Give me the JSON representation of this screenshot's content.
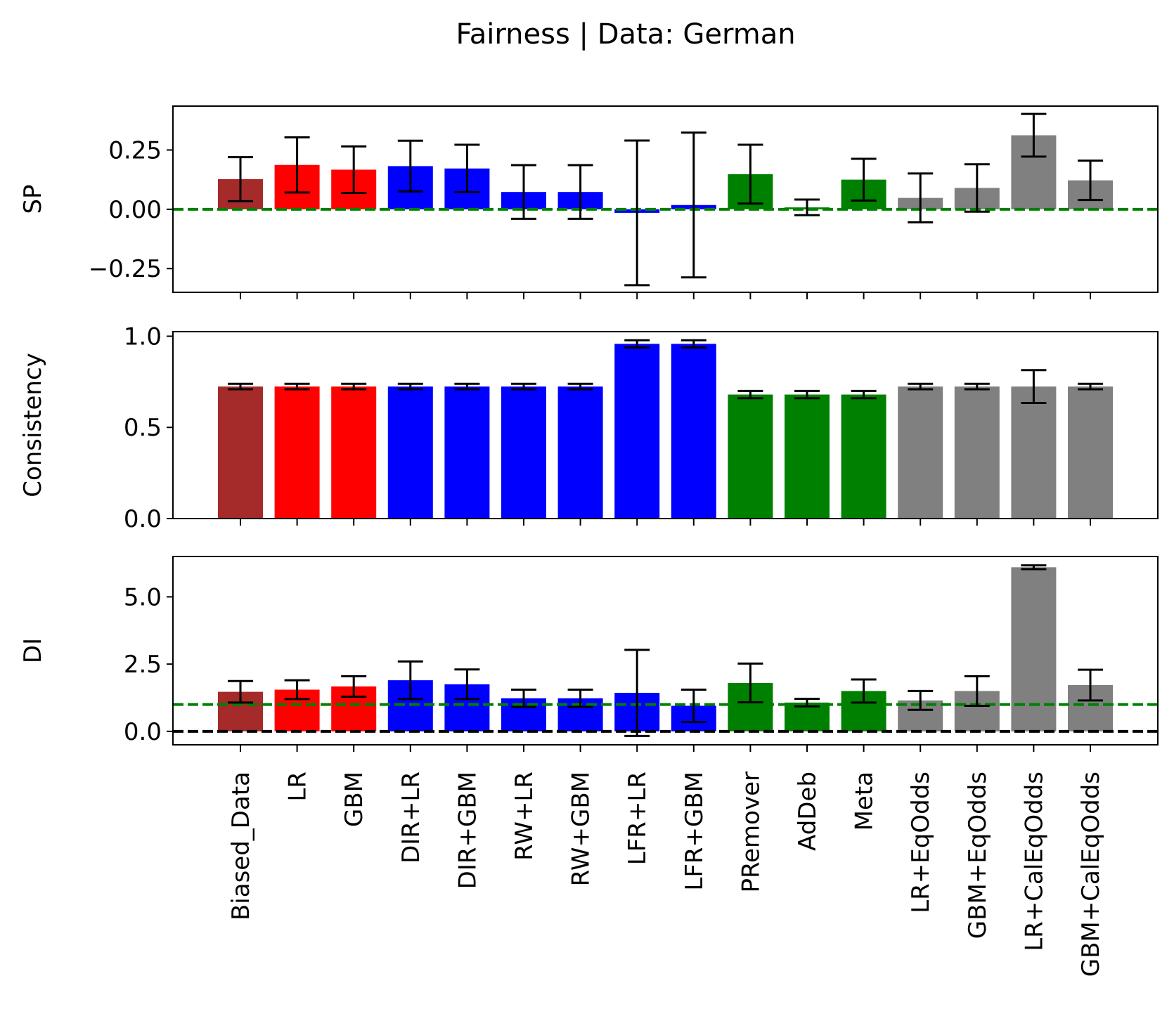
{
  "chart_data": {
    "title": "Fairness  | Data: German",
    "type": "bar",
    "categories": [
      "Biased_Data",
      "LR",
      "GBM",
      "DIR+LR",
      "DIR+GBM",
      "RW+LR",
      "RW+GBM",
      "LFR+LR",
      "LFR+GBM",
      "PRemover",
      "AdDeb",
      "Meta",
      "LR+EqOdds",
      "GBM+EqOdds",
      "LR+CalEqOdds",
      "GBM+CalEqOdds"
    ],
    "bar_colors": [
      "#a52a2a",
      "#ff0000",
      "#ff0000",
      "#0000ff",
      "#0000ff",
      "#0000ff",
      "#0000ff",
      "#0000ff",
      "#0000ff",
      "#008000",
      "#008000",
      "#008000",
      "#808080",
      "#808080",
      "#808080",
      "#808080"
    ],
    "error_bar_color": "#000000",
    "panels": [
      {
        "ylabel": "SP",
        "ylim": [
          -0.35,
          0.435
        ],
        "yticks": [
          -0.25,
          0.0,
          0.25
        ],
        "ytick_labels": [
          "−0.25",
          "0.00",
          "0.25"
        ],
        "values": [
          0.127,
          0.187,
          0.167,
          0.182,
          0.172,
          0.073,
          0.073,
          -0.015,
          0.018,
          0.148,
          0.008,
          0.125,
          0.048,
          0.09,
          0.312,
          0.122
        ],
        "errors": [
          0.093,
          0.116,
          0.098,
          0.107,
          0.1,
          0.113,
          0.113,
          0.305,
          0.305,
          0.124,
          0.033,
          0.088,
          0.103,
          0.1,
          0.09,
          0.083
        ],
        "reference_lines": [
          {
            "y": 0.0,
            "color": "#008000",
            "style": "dashed"
          }
        ],
        "show_xticklabels": false
      },
      {
        "ylabel": "Consistency",
        "ylim": [
          0.0,
          1.025
        ],
        "yticks": [
          0.0,
          0.5,
          1.0
        ],
        "ytick_labels": [
          "0.0",
          "0.5",
          "1.0"
        ],
        "values": [
          0.724,
          0.724,
          0.724,
          0.724,
          0.724,
          0.724,
          0.724,
          0.958,
          0.958,
          0.68,
          0.68,
          0.68,
          0.724,
          0.724,
          0.724,
          0.724
        ],
        "errors": [
          0.015,
          0.015,
          0.015,
          0.015,
          0.015,
          0.015,
          0.015,
          0.02,
          0.02,
          0.02,
          0.02,
          0.02,
          0.015,
          0.015,
          0.09,
          0.015
        ],
        "reference_lines": [],
        "show_xticklabels": false
      },
      {
        "ylabel": "DI",
        "ylim": [
          -0.5,
          6.5
        ],
        "yticks": [
          0.0,
          2.5,
          5.0
        ],
        "ytick_labels": [
          "0.0",
          "2.5",
          "5.0"
        ],
        "values": [
          1.47,
          1.55,
          1.67,
          1.9,
          1.75,
          1.23,
          1.23,
          1.43,
          0.95,
          1.8,
          1.07,
          1.5,
          1.15,
          1.5,
          6.1,
          1.72
        ],
        "errors": [
          0.4,
          0.35,
          0.38,
          0.7,
          0.55,
          0.32,
          0.32,
          1.6,
          0.6,
          0.72,
          0.14,
          0.43,
          0.35,
          0.55,
          0.07,
          0.57
        ],
        "reference_lines": [
          {
            "y": 1.0,
            "color": "#008000",
            "style": "dashed"
          },
          {
            "y": 0.0,
            "color": "#000000",
            "style": "dashed"
          }
        ],
        "show_xticklabels": true
      }
    ]
  }
}
